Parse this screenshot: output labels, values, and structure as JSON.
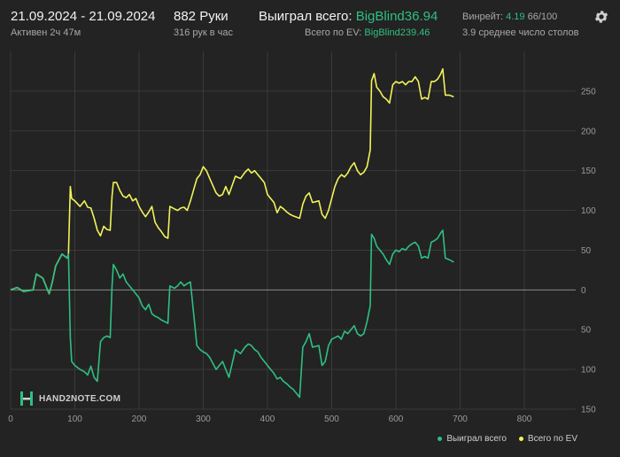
{
  "header": {
    "date_range": "21.09.2024 - 21.09.2024",
    "active": "Активен 2ч 47м",
    "hands": "882 Руки",
    "hands_per_hour": "316 рук в час",
    "won_total_label": "Выиграл всего:",
    "won_total_value": "BigBlind36.94",
    "ev_total_label": "Всего по EV:",
    "ev_total_value": "BigBlind239.46",
    "winrate_label": "Винрейт:",
    "winrate_value": "4.19",
    "winrate_rest": "66/100",
    "tables": "3.9 среднее число столов"
  },
  "logo_text": "HAND2NOTE.COM",
  "colors": {
    "won": "#2fbf82",
    "ev": "#f2f25a",
    "grid": "#3a3a3a",
    "zero": "#8a8a8a",
    "bg": "#232323"
  },
  "legend": {
    "won": "Выиграл всего",
    "ev": "Всего по EV"
  },
  "chart_data": {
    "type": "line",
    "xlabel": "",
    "ylabel": "",
    "xlim": [
      0,
      880
    ],
    "ylim": [
      -150,
      300
    ],
    "x_ticks": [
      0,
      100,
      200,
      300,
      400,
      500,
      600,
      700,
      800
    ],
    "y_ticks": [
      {
        "v": 250,
        "label": "250"
      },
      {
        "v": 200,
        "label": "200"
      },
      {
        "v": 150,
        "label": "150"
      },
      {
        "v": 100,
        "label": "100"
      },
      {
        "v": 50,
        "label": "50"
      },
      {
        "v": 0,
        "label": "0"
      },
      {
        "v": -50,
        "label": "50"
      },
      {
        "v": -100,
        "label": "100"
      },
      {
        "v": -150,
        "label": "150"
      }
    ],
    "grid": true,
    "legend_position": "bottom-right",
    "series": [
      {
        "name": "Всего по EV",
        "color_key": "ev",
        "points": [
          [
            0,
            0
          ],
          [
            10,
            3
          ],
          [
            20,
            -2
          ],
          [
            35,
            0
          ],
          [
            40,
            20
          ],
          [
            50,
            15
          ],
          [
            60,
            -5
          ],
          [
            65,
            10
          ],
          [
            70,
            30
          ],
          [
            80,
            45
          ],
          [
            88,
            40
          ],
          [
            90,
            45
          ],
          [
            93,
            130
          ],
          [
            95,
            115
          ],
          [
            100,
            112
          ],
          [
            108,
            105
          ],
          [
            115,
            112
          ],
          [
            120,
            104
          ],
          [
            125,
            103
          ],
          [
            130,
            90
          ],
          [
            135,
            75
          ],
          [
            140,
            68
          ],
          [
            145,
            80
          ],
          [
            150,
            76
          ],
          [
            155,
            75
          ],
          [
            158,
            118
          ],
          [
            160,
            135
          ],
          [
            165,
            135
          ],
          [
            170,
            125
          ],
          [
            175,
            118
          ],
          [
            180,
            116
          ],
          [
            185,
            120
          ],
          [
            190,
            112
          ],
          [
            195,
            115
          ],
          [
            200,
            105
          ],
          [
            205,
            98
          ],
          [
            210,
            92
          ],
          [
            215,
            98
          ],
          [
            220,
            105
          ],
          [
            225,
            85
          ],
          [
            230,
            78
          ],
          [
            235,
            73
          ],
          [
            240,
            67
          ],
          [
            245,
            65
          ],
          [
            248,
            105
          ],
          [
            255,
            102
          ],
          [
            260,
            100
          ],
          [
            265,
            103
          ],
          [
            270,
            104
          ],
          [
            275,
            100
          ],
          [
            280,
            112
          ],
          [
            290,
            140
          ],
          [
            295,
            145
          ],
          [
            300,
            155
          ],
          [
            305,
            150
          ],
          [
            310,
            140
          ],
          [
            320,
            122
          ],
          [
            325,
            118
          ],
          [
            330,
            120
          ],
          [
            335,
            130
          ],
          [
            340,
            120
          ],
          [
            350,
            143
          ],
          [
            358,
            140
          ],
          [
            365,
            148
          ],
          [
            370,
            152
          ],
          [
            375,
            147
          ],
          [
            380,
            150
          ],
          [
            385,
            145
          ],
          [
            390,
            140
          ],
          [
            395,
            135
          ],
          [
            400,
            120
          ],
          [
            405,
            115
          ],
          [
            410,
            110
          ],
          [
            415,
            97
          ],
          [
            420,
            105
          ],
          [
            425,
            102
          ],
          [
            430,
            98
          ],
          [
            435,
            95
          ],
          [
            440,
            93
          ],
          [
            450,
            90
          ],
          [
            455,
            108
          ],
          [
            460,
            118
          ],
          [
            465,
            122
          ],
          [
            470,
            110
          ],
          [
            480,
            112
          ],
          [
            485,
            95
          ],
          [
            490,
            90
          ],
          [
            495,
            100
          ],
          [
            500,
            115
          ],
          [
            505,
            130
          ],
          [
            510,
            140
          ],
          [
            515,
            145
          ],
          [
            520,
            142
          ],
          [
            525,
            147
          ],
          [
            530,
            155
          ],
          [
            535,
            160
          ],
          [
            540,
            150
          ],
          [
            545,
            145
          ],
          [
            550,
            148
          ],
          [
            555,
            155
          ],
          [
            560,
            176
          ],
          [
            562,
            263
          ],
          [
            566,
            272
          ],
          [
            570,
            255
          ],
          [
            575,
            250
          ],
          [
            580,
            243
          ],
          [
            585,
            240
          ],
          [
            590,
            235
          ],
          [
            595,
            258
          ],
          [
            600,
            262
          ],
          [
            605,
            260
          ],
          [
            610,
            262
          ],
          [
            615,
            258
          ],
          [
            620,
            262
          ],
          [
            625,
            262
          ],
          [
            630,
            268
          ],
          [
            635,
            262
          ],
          [
            640,
            240
          ],
          [
            645,
            242
          ],
          [
            650,
            240
          ],
          [
            655,
            262
          ],
          [
            660,
            262
          ],
          [
            665,
            265
          ],
          [
            670,
            272
          ],
          [
            673,
            278
          ],
          [
            677,
            245
          ],
          [
            683,
            245
          ],
          [
            690,
            243
          ]
        ]
      },
      {
        "name": "Выиграл всего",
        "color_key": "won",
        "points": [
          [
            0,
            0
          ],
          [
            10,
            3
          ],
          [
            20,
            -2
          ],
          [
            35,
            0
          ],
          [
            40,
            20
          ],
          [
            50,
            15
          ],
          [
            60,
            -5
          ],
          [
            65,
            10
          ],
          [
            70,
            30
          ],
          [
            80,
            45
          ],
          [
            88,
            40
          ],
          [
            90,
            45
          ],
          [
            93,
            -60
          ],
          [
            95,
            -90
          ],
          [
            100,
            -95
          ],
          [
            108,
            -100
          ],
          [
            115,
            -103
          ],
          [
            120,
            -107
          ],
          [
            125,
            -96
          ],
          [
            130,
            -110
          ],
          [
            135,
            -115
          ],
          [
            140,
            -65
          ],
          [
            145,
            -60
          ],
          [
            150,
            -58
          ],
          [
            155,
            -60
          ],
          [
            158,
            5
          ],
          [
            160,
            32
          ],
          [
            165,
            25
          ],
          [
            170,
            15
          ],
          [
            175,
            20
          ],
          [
            180,
            10
          ],
          [
            185,
            5
          ],
          [
            190,
            0
          ],
          [
            195,
            -5
          ],
          [
            200,
            -10
          ],
          [
            205,
            -20
          ],
          [
            210,
            -25
          ],
          [
            215,
            -18
          ],
          [
            220,
            -30
          ],
          [
            225,
            -33
          ],
          [
            230,
            -35
          ],
          [
            235,
            -38
          ],
          [
            240,
            -40
          ],
          [
            245,
            -42
          ],
          [
            248,
            5
          ],
          [
            255,
            2
          ],
          [
            260,
            5
          ],
          [
            265,
            10
          ],
          [
            270,
            5
          ],
          [
            275,
            8
          ],
          [
            280,
            10
          ],
          [
            290,
            -70
          ],
          [
            295,
            -75
          ],
          [
            300,
            -78
          ],
          [
            305,
            -80
          ],
          [
            310,
            -85
          ],
          [
            320,
            -100
          ],
          [
            325,
            -95
          ],
          [
            330,
            -90
          ],
          [
            335,
            -100
          ],
          [
            340,
            -110
          ],
          [
            350,
            -75
          ],
          [
            358,
            -80
          ],
          [
            365,
            -72
          ],
          [
            370,
            -68
          ],
          [
            375,
            -70
          ],
          [
            380,
            -75
          ],
          [
            385,
            -78
          ],
          [
            390,
            -85
          ],
          [
            395,
            -90
          ],
          [
            400,
            -95
          ],
          [
            405,
            -100
          ],
          [
            410,
            -105
          ],
          [
            415,
            -112
          ],
          [
            420,
            -110
          ],
          [
            425,
            -115
          ],
          [
            430,
            -118
          ],
          [
            435,
            -122
          ],
          [
            440,
            -125
          ],
          [
            450,
            -135
          ],
          [
            455,
            -72
          ],
          [
            460,
            -65
          ],
          [
            465,
            -55
          ],
          [
            470,
            -72
          ],
          [
            480,
            -70
          ],
          [
            485,
            -95
          ],
          [
            490,
            -90
          ],
          [
            495,
            -70
          ],
          [
            500,
            -62
          ],
          [
            505,
            -60
          ],
          [
            510,
            -58
          ],
          [
            515,
            -62
          ],
          [
            520,
            -52
          ],
          [
            525,
            -55
          ],
          [
            530,
            -50
          ],
          [
            535,
            -45
          ],
          [
            540,
            -55
          ],
          [
            545,
            -58
          ],
          [
            550,
            -55
          ],
          [
            555,
            -40
          ],
          [
            560,
            -20
          ],
          [
            562,
            70
          ],
          [
            566,
            65
          ],
          [
            570,
            55
          ],
          [
            575,
            50
          ],
          [
            580,
            45
          ],
          [
            585,
            38
          ],
          [
            590,
            32
          ],
          [
            595,
            45
          ],
          [
            600,
            50
          ],
          [
            605,
            48
          ],
          [
            610,
            52
          ],
          [
            615,
            50
          ],
          [
            620,
            55
          ],
          [
            625,
            58
          ],
          [
            630,
            60
          ],
          [
            635,
            55
          ],
          [
            640,
            40
          ],
          [
            645,
            42
          ],
          [
            650,
            40
          ],
          [
            655,
            60
          ],
          [
            660,
            62
          ],
          [
            665,
            65
          ],
          [
            670,
            72
          ],
          [
            673,
            75
          ],
          [
            677,
            40
          ],
          [
            683,
            38
          ],
          [
            690,
            35
          ]
        ]
      }
    ]
  }
}
